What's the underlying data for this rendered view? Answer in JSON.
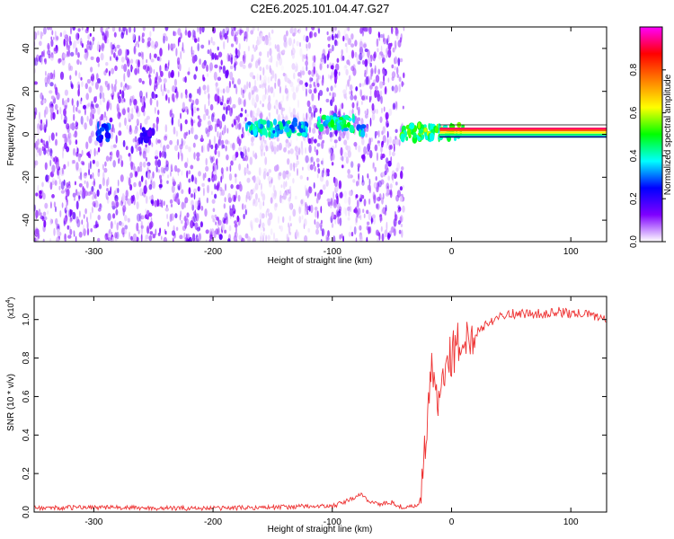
{
  "title": "C2E6.2025.101.04.47.G27",
  "chart_data": [
    {
      "type": "heatmap",
      "xlabel": "Height of straight line (km)",
      "ylabel": "Frequency (Hz)",
      "xlim": [
        -350,
        130
      ],
      "ylim": [
        -50,
        50
      ],
      "x_ticks": [
        -300,
        -200,
        -100,
        0,
        100
      ],
      "x_tick_labels": [
        "-300",
        "-200",
        "-100",
        "0",
        "100"
      ],
      "y_ticks": [
        -40,
        -20,
        0,
        20,
        40
      ],
      "y_tick_labels": [
        "-40",
        "-20",
        "0",
        "20",
        "40"
      ],
      "noise_region_x": [
        -350,
        -40
      ],
      "blank_gaps_x": [
        [
          -172,
          -122
        ],
        [
          -90,
          -84
        ]
      ],
      "signal_segments": [
        {
          "x_start": -297,
          "x_end": -286,
          "freq": 1,
          "amplitude": 0.35
        },
        {
          "x_start": -262,
          "x_end": -250,
          "freq": -1,
          "amplitude": 0.25
        },
        {
          "x_start": -172,
          "x_end": -122,
          "freq": 3,
          "amplitude": 0.45
        },
        {
          "x_start": -112,
          "x_end": -82,
          "freq": 5,
          "amplitude": 0.5
        },
        {
          "x_start": -78,
          "x_end": -74,
          "freq": 3,
          "amplitude": 0.45
        },
        {
          "x_start": -42,
          "x_end": 10,
          "freq": 1,
          "amplitude": 0.6
        }
      ],
      "carrier": {
        "x_start": -10,
        "x_end": 130,
        "freq": 1
      },
      "colorbar": {
        "label": "Normalized spectral amplitude",
        "range": [
          0,
          1
        ],
        "ticks": [
          0.0,
          0.2,
          0.4,
          0.6,
          0.8
        ],
        "tick_labels": [
          "0.0",
          "0.2",
          "0.4",
          "0.6",
          "0.8"
        ],
        "colors": [
          "#ffffff",
          "#7f00ff",
          "#0000ff",
          "#00ffff",
          "#00ff00",
          "#ffff00",
          "#ff8000",
          "#ff0000",
          "#ff00ff"
        ]
      }
    },
    {
      "type": "line",
      "xlabel": "Height of straight line (km)",
      "ylabel": "SNR (10 * v/v)",
      "y_multiplier": "(x10",
      "y_multiplier_exp": "4",
      "y_multiplier_close": ")",
      "xlim": [
        -350,
        130
      ],
      "ylim": [
        0,
        1.12
      ],
      "x_ticks": [
        -300,
        -200,
        -100,
        0,
        100
      ],
      "x_tick_labels": [
        "-300",
        "-200",
        "-100",
        "0",
        "100"
      ],
      "y_ticks": [
        0.0,
        0.2,
        0.4,
        0.6,
        0.8,
        1.0
      ],
      "y_tick_labels": [
        "0.0",
        "0.2",
        "0.4",
        "0.6",
        "0.8",
        "1.0"
      ],
      "series": [
        {
          "color": "#ee3333",
          "x": [
            -350,
            -300,
            -250,
            -200,
            -150,
            -120,
            -100,
            -90,
            -80,
            -75,
            -70,
            -60,
            -50,
            -40,
            -30,
            -27,
            -24,
            -22,
            -20,
            -18,
            -16,
            -14,
            -12,
            -10,
            -8,
            -5,
            -2,
            0,
            3,
            6,
            10,
            15,
            20,
            25,
            30,
            35,
            40,
            45,
            50,
            60,
            70,
            80,
            90,
            100,
            110,
            120,
            130
          ],
          "y": [
            0.02,
            0.025,
            0.02,
            0.02,
            0.025,
            0.03,
            0.03,
            0.05,
            0.08,
            0.09,
            0.06,
            0.04,
            0.05,
            0.02,
            0.03,
            0.05,
            0.15,
            0.35,
            0.55,
            0.7,
            0.75,
            0.6,
            0.55,
            0.62,
            0.7,
            0.72,
            0.8,
            0.82,
            0.85,
            0.87,
            0.88,
            0.9,
            0.93,
            0.96,
            0.98,
            1.0,
            1.02,
            1.03,
            1.03,
            1.03,
            1.03,
            1.03,
            1.04,
            1.03,
            1.03,
            1.02,
            1.0
          ]
        }
      ]
    }
  ]
}
